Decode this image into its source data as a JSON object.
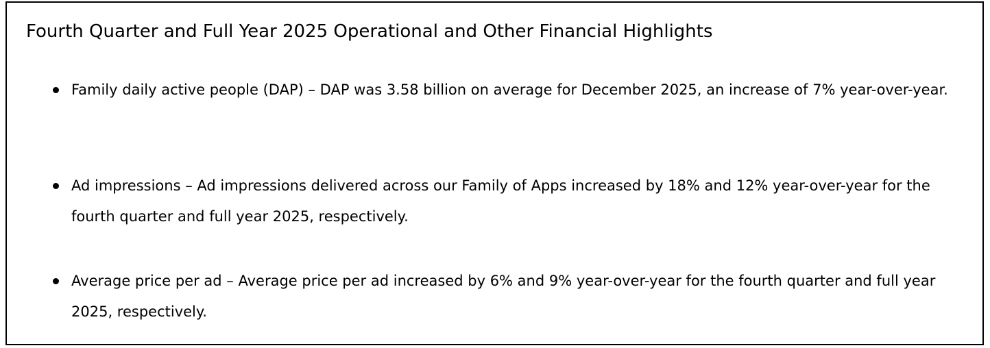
{
  "document": {
    "title": "Fourth Quarter and Full Year 2025 Operational and Other Financial Highlights",
    "bullets": [
      {
        "text": "Family daily active people (DAP) – DAP was 3.58 billion on average for December 2025, an increase of 7% year-over-year."
      },
      {
        "text": "Ad impressions – Ad impressions delivered across our Family of Apps increased by 18% and 12% year-over-year for the fourth quarter and full year 2025, respectively."
      },
      {
        "text": "Average price per ad – Average price per ad increased by 6% and 9% year-over-year for the fourth quarter and full year 2025, respectively."
      }
    ]
  }
}
